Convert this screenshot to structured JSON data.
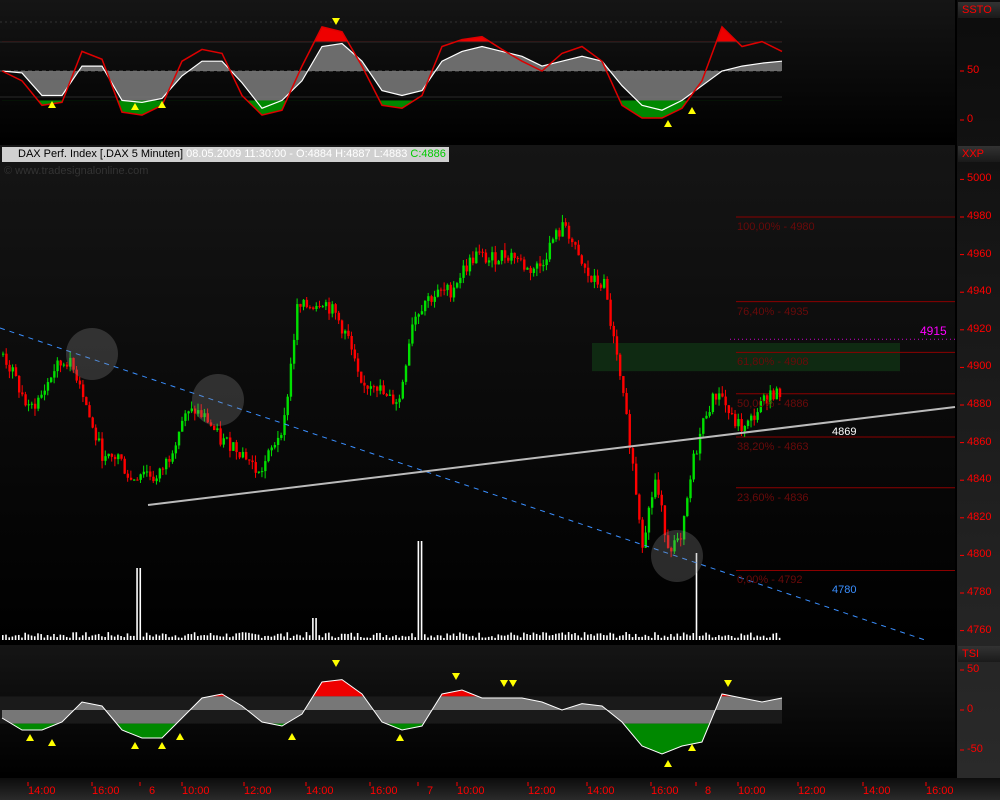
{
  "panels": {
    "top": "SSTO",
    "main": "XXP",
    "bottom": "TSI"
  },
  "infobar": {
    "symbol": "DAX Perf. Index [.DAX  5 Minuten]",
    "datetime": "08.05.2009 11:30:00 - O:4884 H:4887 L:4883",
    "close": "C:4886"
  },
  "watermark": "© www.tradesignalonline.com",
  "colors": {
    "up": "#00e000",
    "down": "#ff0000",
    "axis": "#ff0000",
    "fib": "#8b0000",
    "marker": "#ff00ff",
    "trend": "#cccccc",
    "channel": "#3a8fff"
  },
  "annotations": {
    "magenta_level": "4915",
    "trend_value": "4869",
    "channel_value": "4780"
  },
  "fib_levels": [
    {
      "label": "100,00% - 4980",
      "price": 4980
    },
    {
      "label": "76,40% - 4935",
      "price": 4935
    },
    {
      "label": "61,80% - 4908",
      "price": 4908
    },
    {
      "label": "50,00% - 4886",
      "price": 4886
    },
    {
      "label": "38,20% - 4863",
      "price": 4863
    },
    {
      "label": "23,60% - 4836",
      "price": 4836
    },
    {
      "label": "0,00% - 4792",
      "price": 4792
    }
  ],
  "chart_data": [
    {
      "type": "line",
      "name": "SSTO",
      "yticks": [
        "50",
        "0"
      ],
      "ylim": [
        0,
        100
      ],
      "k": [
        50,
        48,
        25,
        25,
        55,
        55,
        20,
        18,
        22,
        45,
        60,
        60,
        38,
        12,
        20,
        40,
        75,
        78,
        60,
        30,
        25,
        30,
        60,
        70,
        75,
        70,
        65,
        55,
        60,
        65,
        60,
        35,
        15,
        10,
        20,
        35,
        50,
        55,
        58,
        60
      ],
      "signal": [
        50,
        40,
        15,
        18,
        70,
        62,
        8,
        5,
        15,
        60,
        72,
        68,
        25,
        5,
        10,
        55,
        95,
        90,
        55,
        15,
        12,
        25,
        75,
        82,
        85,
        72,
        60,
        50,
        68,
        75,
        60,
        15,
        2,
        2,
        12,
        40,
        95,
        75,
        80,
        70
      ]
    },
    {
      "type": "candlestick",
      "name": "DAX",
      "ylim": [
        4760,
        5005
      ],
      "yticks": [
        "5000",
        "4980",
        "4960",
        "4940",
        "4920",
        "4900",
        "4880",
        "4860",
        "4840",
        "4820",
        "4800",
        "4780",
        "4760"
      ],
      "xticks": [
        "14:00",
        "16:00",
        "6",
        "10:00",
        "12:00",
        "14:00",
        "16:00",
        "7",
        "10:00",
        "12:00",
        "14:00",
        "16:00",
        "8",
        "10:00",
        "12:00",
        "14:00",
        "16:00"
      ],
      "closes": [
        4907,
        4893,
        4877,
        4885,
        4899,
        4904,
        4893,
        4867,
        4850,
        4853,
        4840,
        4846,
        4840,
        4853,
        4872,
        4877,
        4872,
        4861,
        4859,
        4853,
        4843,
        4856,
        4872,
        4931,
        4933,
        4936,
        4928,
        4915,
        4888,
        4893,
        4883,
        4883,
        4925,
        4936,
        4939,
        4941,
        4952,
        4960,
        4957,
        4960,
        4960,
        4952,
        4954,
        4968,
        4976,
        4957,
        4946,
        4944,
        4904,
        4861,
        4808,
        4840,
        4806,
        4806,
        4851,
        4877,
        4888,
        4872,
        4867,
        4877,
        4887,
        4885
      ],
      "volume_spikes": [
        {
          "at": "6 open",
          "rel": 1.0
        },
        {
          "at": "6 14:00",
          "rel": 0.3
        },
        {
          "at": "7 open",
          "rel": 1.4
        },
        {
          "at": "8 open",
          "rel": 1.2
        }
      ]
    },
    {
      "type": "area",
      "name": "TSI",
      "yticks": [
        "50",
        "0",
        "-50"
      ],
      "ylim": [
        -70,
        70
      ],
      "values": [
        -10,
        -25,
        -25,
        -15,
        10,
        5,
        -25,
        -35,
        -35,
        -10,
        15,
        20,
        5,
        -15,
        -20,
        -5,
        35,
        38,
        20,
        -15,
        -25,
        -20,
        20,
        25,
        15,
        15,
        15,
        10,
        0,
        8,
        5,
        -15,
        -45,
        -55,
        -45,
        -40,
        20,
        15,
        10,
        15
      ]
    }
  ]
}
